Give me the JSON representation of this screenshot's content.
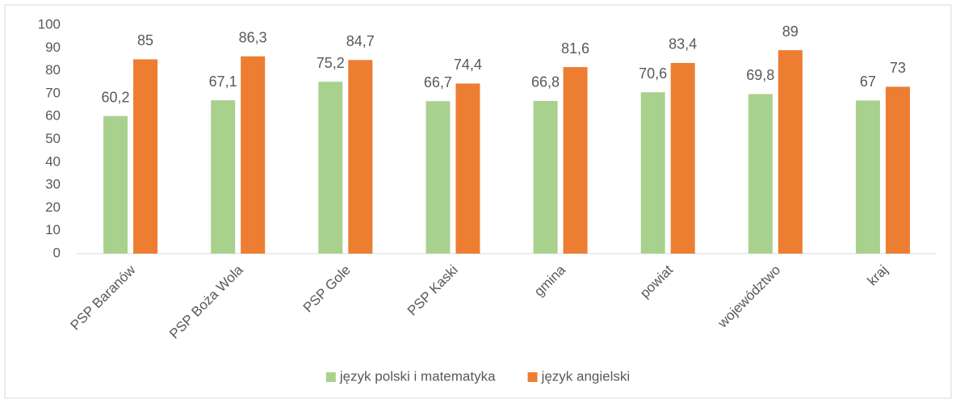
{
  "chart_data": {
    "type": "bar",
    "categories": [
      "PSP Baranów",
      "PSP Boża Wola",
      "PSP Gole",
      "PSP Kaski",
      "gmina",
      "powiat",
      "województwo",
      "kraj"
    ],
    "series": [
      {
        "name": "język polski i matematyka",
        "color": "#a9d18e",
        "values": [
          60.2,
          67.1,
          75.2,
          66.7,
          66.8,
          70.6,
          69.8,
          67
        ],
        "value_labels": [
          "60,2",
          "67,1",
          "75,2",
          "66,7",
          "66,8",
          "70,6",
          "69,8",
          "67"
        ]
      },
      {
        "name": "język angielski",
        "color": "#ed7d31",
        "values": [
          85,
          86.3,
          84.7,
          74.4,
          81.6,
          83.4,
          89,
          73
        ],
        "value_labels": [
          "85",
          "86,3",
          "84,7",
          "74,4",
          "81,6",
          "83,4",
          "89",
          "73"
        ]
      }
    ],
    "ylim": [
      0,
      100
    ],
    "yticks": [
      0,
      10,
      20,
      30,
      40,
      50,
      60,
      70,
      80,
      90,
      100
    ],
    "grid": false,
    "legend": "bottom"
  }
}
